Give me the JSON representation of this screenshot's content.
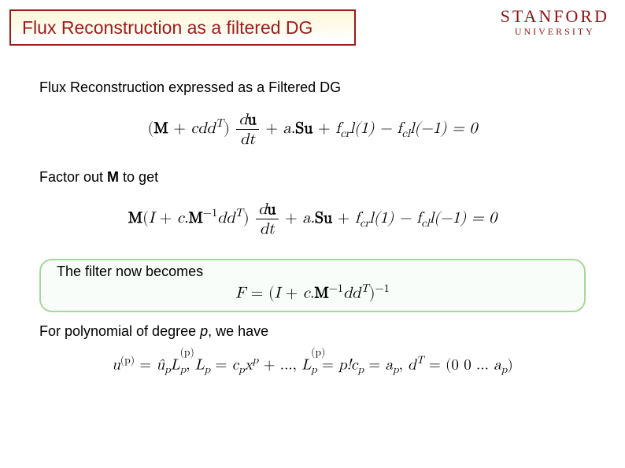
{
  "title": {
    "text": "Flux Reconstruction as a filtered DG",
    "color": "#9b1b1b",
    "border_color": "#9b1b1b",
    "fontsize": 23
  },
  "logo": {
    "main": "STANFORD",
    "sub": "UNIVERSITY",
    "color": "#8c1515",
    "main_fontsize": 22,
    "sub_fontsize": 12
  },
  "body": {
    "fontsize": 18,
    "eq_fontsize": 20,
    "line1": "Flux Reconstruction expressed as a Filtered DG",
    "line2": "Factor out M to get",
    "line3": "The filter now becomes",
    "line4": "For polynomial of degree p, we have",
    "eq1": {
      "pre": "(",
      "M": "M",
      "mid1": " + ",
      "cdd": "cdd",
      "T": "T",
      "mid2": ")",
      "frac_num_d": "d",
      "frac_num_u": "u",
      "frac_den": "dt",
      "mid3": " + ",
      "a": "a.",
      "Su": "Su",
      "mid4": " + ",
      "fcr": "f",
      "cr_sub": "cr",
      "l1": "l(1) − ",
      "fcl": "f",
      "cl_sub": "cl",
      "l2": "l(−1) = 0"
    },
    "eq2": {
      "M": "M",
      "open": "(",
      "I": "I",
      "mid1": " + ",
      "c": "c.",
      "Minv": "M",
      "neg1": "−1",
      "dd": "dd",
      "T": "T",
      "close": ")",
      "frac_num_d": "d",
      "frac_num_u": "u",
      "frac_den": "dt",
      "mid3": " + ",
      "a": "a.",
      "Su": "Su",
      "mid4": " + ",
      "fcr": "f",
      "cr_sub": "cr",
      "l1": "l(1) − ",
      "fcl": "f",
      "cl_sub": "cl",
      "l2": "l(−1) = 0"
    },
    "eq3": {
      "F": "F",
      "eq": " = (",
      "I": "I",
      "mid1": " + ",
      "c": "c.",
      "M": "M",
      "neg1": "−1",
      "dd": "dd",
      "T": "T",
      "close": ")",
      "neg1b": "−1"
    },
    "eq4": {
      "u": "u",
      "p_sup": "(p)",
      "eq1": " = ",
      "uhat": "û",
      "p_sub": "p",
      "L": "L",
      "p_sup2": "(p)",
      "p_sub2": "p",
      "com1": ",  ",
      "L2": "L",
      "p_sub3": "p",
      "eq2": " = ",
      "cp": "c",
      "p_sub4": "p",
      "x": "x",
      "p_sup3": "p",
      "dots1": " + ...,  ",
      "L3": "L",
      "p_sup4": "(p)",
      "p_sub5": "p",
      "eq3": " = ",
      "pfac": "p!",
      "cp2": "c",
      "p_sub6": "p",
      "eq4": " = ",
      "ap": "a",
      "p_sub7": "p",
      "com2": ",  ",
      "d": "d",
      "T": "T",
      "eq5": " = (0 0 ... ",
      "ap2": "a",
      "p_sub8": "p",
      "close": ")"
    }
  },
  "highlight": {
    "border_color": "#a6d89a"
  }
}
